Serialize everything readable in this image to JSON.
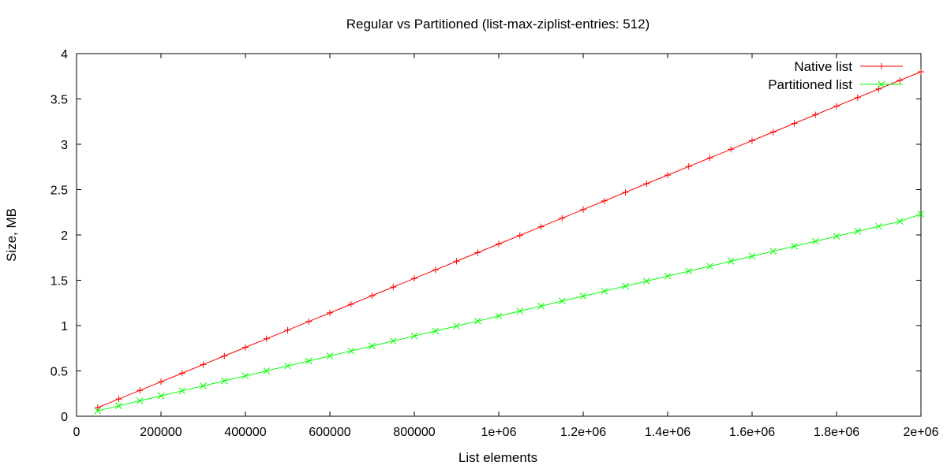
{
  "chart_data": {
    "type": "line",
    "title": "Regular vs Partitioned (list-max-ziplist-entries: 512)",
    "xlabel": "List elements",
    "ylabel": "Size, MB",
    "xlim": [
      0,
      2000000
    ],
    "ylim": [
      0,
      4
    ],
    "x_ticks": [
      0,
      200000,
      400000,
      600000,
      800000,
      1000000,
      1200000,
      1400000,
      1600000,
      1800000,
      2000000
    ],
    "x_tick_labels": [
      "0",
      "200000",
      "400000",
      "600000",
      "800000",
      "1e+06",
      "1.2e+06",
      "1.4e+06",
      "1.6e+06",
      "1.8e+06",
      "2e+06"
    ],
    "y_ticks": [
      0,
      0.5,
      1,
      1.5,
      2,
      2.5,
      3,
      3.5,
      4
    ],
    "y_tick_labels": [
      "0",
      "0.5",
      "1",
      "1.5",
      "2",
      "2.5",
      "3",
      "3.5",
      "4"
    ],
    "grid": false,
    "legend_position": "top-right",
    "x": [
      50000,
      100000,
      150000,
      200000,
      250000,
      300000,
      350000,
      400000,
      450000,
      500000,
      550000,
      600000,
      650000,
      700000,
      750000,
      800000,
      850000,
      900000,
      950000,
      1000000,
      1050000,
      1100000,
      1150000,
      1200000,
      1250000,
      1300000,
      1350000,
      1400000,
      1450000,
      1500000,
      1550000,
      1600000,
      1650000,
      1700000,
      1750000,
      1800000,
      1850000,
      1900000,
      1950000,
      2000000
    ],
    "series": [
      {
        "name": "Native list",
        "color": "#ff0000",
        "marker": "plus",
        "values": [
          0.095,
          0.19,
          0.285,
          0.38,
          0.475,
          0.57,
          0.665,
          0.76,
          0.855,
          0.95,
          1.045,
          1.14,
          1.235,
          1.33,
          1.425,
          1.52,
          1.615,
          1.71,
          1.805,
          1.9,
          1.995,
          2.09,
          2.185,
          2.28,
          2.375,
          2.47,
          2.565,
          2.66,
          2.755,
          2.85,
          2.945,
          3.04,
          3.135,
          3.23,
          3.325,
          3.42,
          3.515,
          3.61,
          3.705,
          3.8
        ]
      },
      {
        "name": "Partitioned list",
        "color": "#00ff00",
        "marker": "cross",
        "values": [
          0.06,
          0.115,
          0.17,
          0.225,
          0.28,
          0.335,
          0.39,
          0.445,
          0.5,
          0.555,
          0.61,
          0.665,
          0.72,
          0.775,
          0.83,
          0.885,
          0.94,
          0.995,
          1.05,
          1.105,
          1.16,
          1.215,
          1.27,
          1.325,
          1.38,
          1.435,
          1.49,
          1.545,
          1.6,
          1.655,
          1.71,
          1.765,
          1.82,
          1.875,
          1.93,
          1.985,
          2.04,
          2.095,
          2.15,
          2.23
        ]
      }
    ]
  }
}
